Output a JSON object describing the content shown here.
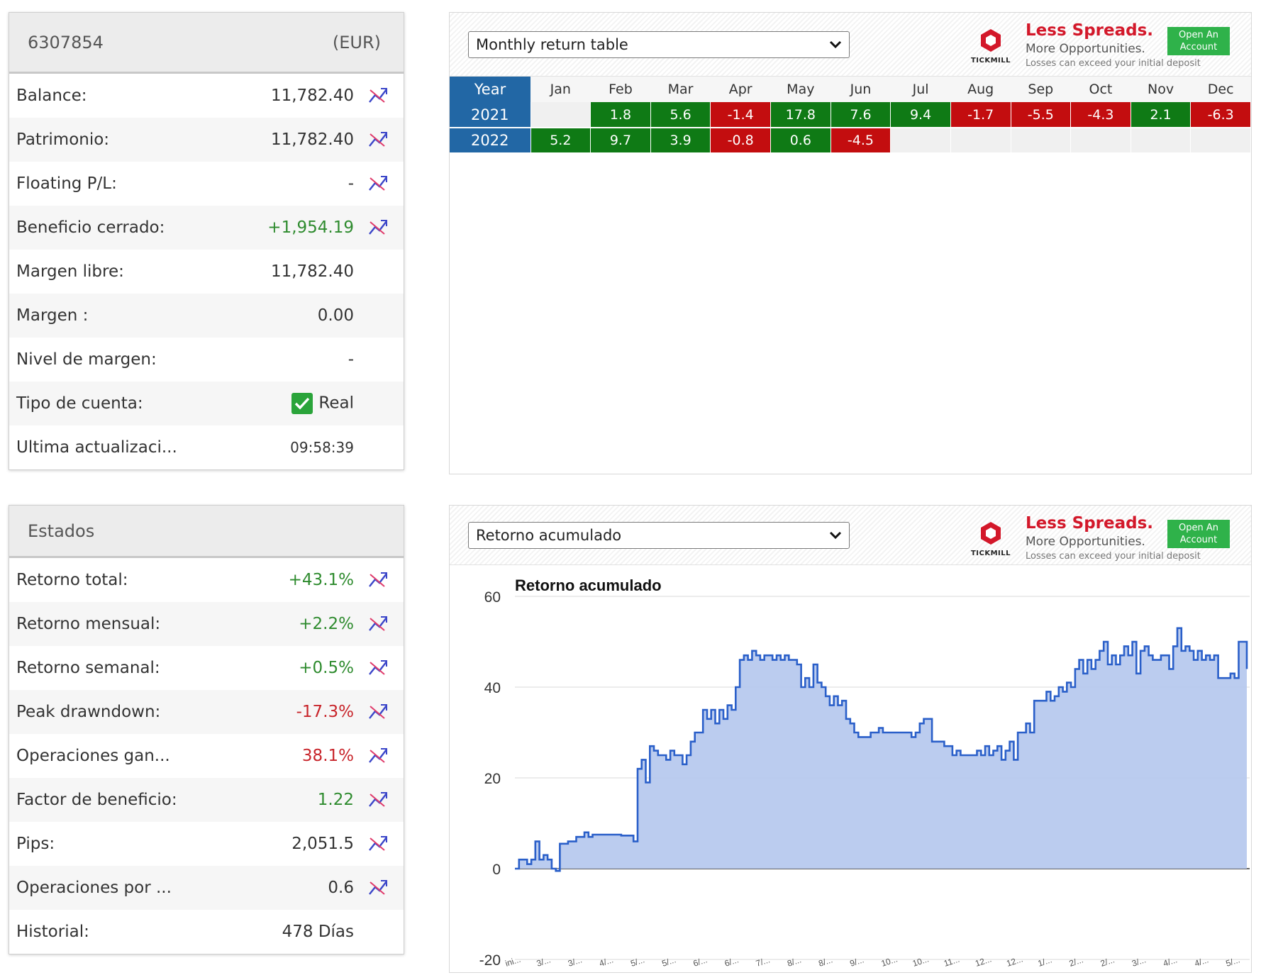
{
  "account": {
    "id": "6307854",
    "currency": "(EUR)",
    "rows": [
      {
        "label": "Balance:",
        "value": "11,782.40",
        "tone": "",
        "chart": true
      },
      {
        "label": "Patrimonio:",
        "value": "11,782.40",
        "tone": "",
        "chart": true
      },
      {
        "label": "Floating P/L:",
        "value": "-",
        "tone": "",
        "chart": true
      },
      {
        "label": "Beneficio cerrado:",
        "value": "+1,954.19",
        "tone": "pos",
        "chart": true
      },
      {
        "label": "Margen libre:",
        "value": "11,782.40",
        "tone": "",
        "chart": false
      },
      {
        "label": "Margen :",
        "value": "0.00",
        "tone": "",
        "chart": false
      },
      {
        "label": "Nivel de margen:",
        "value": "-",
        "tone": "",
        "chart": false
      },
      {
        "label": "Tipo de cuenta:",
        "value": "Real",
        "tone": "",
        "chart": false,
        "check": true
      },
      {
        "label": "Ultima actualizaci...",
        "value": "09:58:39",
        "tone": "small",
        "chart": false
      }
    ]
  },
  "stats": {
    "title": "Estados",
    "rows": [
      {
        "label": "Retorno total:",
        "value": "+43.1%",
        "tone": "pos",
        "chart": true
      },
      {
        "label": "Retorno mensual:",
        "value": "+2.2%",
        "tone": "pos",
        "chart": true
      },
      {
        "label": "Retorno semanal:",
        "value": "+0.5%",
        "tone": "pos",
        "chart": true
      },
      {
        "label": "Peak drawndown:",
        "value": "-17.3%",
        "tone": "neg",
        "chart": true
      },
      {
        "label": "Operaciones gan...",
        "value": "38.1%",
        "tone": "neg",
        "chart": true
      },
      {
        "label": "Factor de beneficio:",
        "value": "1.22",
        "tone": "pos",
        "chart": true
      },
      {
        "label": "Pips:",
        "value": "2,051.5",
        "tone": "",
        "chart": true
      },
      {
        "label": "Operaciones por ...",
        "value": "0.6",
        "tone": "",
        "chart": true
      },
      {
        "label": "Historial:",
        "value": "478 Días",
        "tone": "",
        "chart": false
      }
    ]
  },
  "ad": {
    "headline": "Less Spreads.",
    "sub": "More Opportunities.",
    "disclaimer": "Losses can exceed your initial deposit",
    "button_line1": "Open An",
    "button_line2": "Account",
    "logo_text": "TICKMILL",
    "brand_color": "#d3182a",
    "button_color": "#2fb24a"
  },
  "monthly_widget": {
    "select_value": "Monthly return table",
    "year_header": "Year",
    "months": [
      "Jan",
      "Feb",
      "Mar",
      "Apr",
      "May",
      "Jun",
      "Jul",
      "Aug",
      "Sep",
      "Oct",
      "Nov",
      "Dec"
    ],
    "rows": [
      {
        "year": "2021",
        "values": [
          "",
          "1.8",
          "5.6",
          "-1.4",
          "17.8",
          "7.6",
          "9.4",
          "-1.7",
          "-5.5",
          "-4.3",
          "2.1",
          "-6.3"
        ]
      },
      {
        "year": "2022",
        "values": [
          "5.2",
          "9.7",
          "3.9",
          "-0.8",
          "0.6",
          "-4.5",
          "",
          "",
          "",
          "",
          "",
          ""
        ]
      }
    ]
  },
  "chart_widget": {
    "select_value": "Retorno acumulado"
  },
  "chart_data": {
    "type": "area",
    "title": "Retorno acumulado",
    "xlabel": "",
    "ylabel": "",
    "ylim": [
      -20,
      60
    ],
    "yticks": [
      -20,
      0,
      20,
      40,
      60
    ],
    "grid": true,
    "line_color": "#2a5fc9",
    "fill_color": "#b7c9ee",
    "x_tick_labels": [
      "ini...",
      "3/...",
      "3/...",
      "4/...",
      "5/...",
      "5/...",
      "6/...",
      "6/...",
      "7/...",
      "8/...",
      "8/...",
      "9/...",
      "10...",
      "10...",
      "11...",
      "12...",
      "12...",
      "1/...",
      "2/...",
      "2/...",
      "3/...",
      "4/...",
      "4/...",
      "5/..."
    ],
    "values": [
      0,
      2,
      2,
      1,
      2,
      6,
      2,
      3,
      2,
      0,
      -0.5,
      5.5,
      5.5,
      6,
      6,
      7,
      7,
      8,
      7,
      7.5,
      7.5,
      7.5,
      7.5,
      7.5,
      7.5,
      7.5,
      7.3,
      7.3,
      7.3,
      6,
      22,
      24,
      19,
      27,
      26,
      25,
      25,
      24,
      26,
      25,
      25,
      23,
      25,
      28,
      30,
      30,
      35,
      33,
      35,
      32,
      35,
      33,
      36,
      35,
      40,
      46,
      47,
      46,
      48,
      47,
      46,
      47,
      47,
      46,
      47,
      46,
      47,
      46,
      46,
      45,
      40,
      42,
      40,
      45,
      41,
      40,
      38,
      36,
      38,
      36,
      37,
      33,
      32,
      30,
      29,
      29,
      29,
      30,
      30,
      31,
      30,
      30,
      30,
      30,
      30,
      30,
      30,
      29,
      30,
      32,
      33,
      33,
      28,
      28,
      28,
      27,
      27,
      25,
      26,
      25,
      25,
      25,
      25,
      26,
      25,
      27,
      25,
      26,
      27,
      24,
      26,
      28,
      24,
      30,
      30,
      32,
      30,
      37,
      37,
      37,
      39,
      37,
      38,
      40,
      39,
      41,
      40,
      44,
      46,
      43,
      46,
      44,
      46,
      48,
      50,
      45,
      47,
      45,
      47,
      49,
      47,
      50,
      43,
      48,
      49,
      47,
      46,
      46,
      47,
      47,
      44,
      49,
      53,
      48,
      49,
      48,
      46,
      48,
      46,
      47,
      46,
      47,
      42,
      42,
      42,
      43,
      42,
      50,
      50,
      44
    ]
  }
}
